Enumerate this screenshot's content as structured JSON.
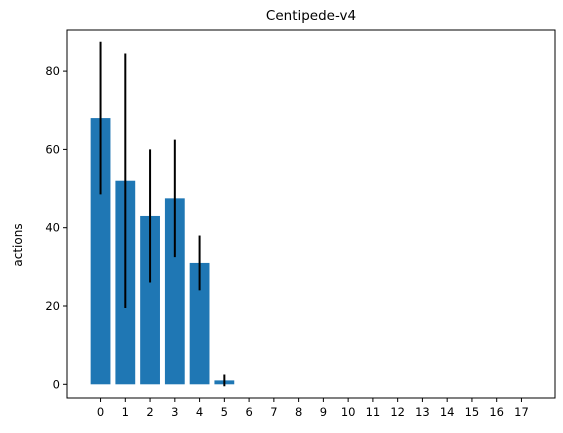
{
  "chart_data": {
    "type": "bar",
    "title": "Centipede-v4",
    "xlabel": "",
    "ylabel": "actions",
    "categories": [
      "0",
      "1",
      "2",
      "3",
      "4",
      "5",
      "6",
      "7",
      "8",
      "9",
      "10",
      "11",
      "12",
      "13",
      "14",
      "15",
      "16",
      "17"
    ],
    "values": [
      68,
      52,
      43,
      47.5,
      31,
      1,
      0,
      0,
      0,
      0,
      0,
      0,
      0,
      0,
      0,
      0,
      0,
      0
    ],
    "errors": [
      19.5,
      32.5,
      17,
      15,
      7,
      1.5,
      0,
      0,
      0,
      0,
      0,
      0,
      0,
      0,
      0,
      0,
      0,
      0
    ],
    "ylim": [
      -3.5,
      90.5
    ],
    "yticks": [
      0,
      20,
      40,
      60,
      80
    ],
    "bar_color": "#1f77b4",
    "error_color": "#000000",
    "grid": false,
    "legend": "none"
  }
}
